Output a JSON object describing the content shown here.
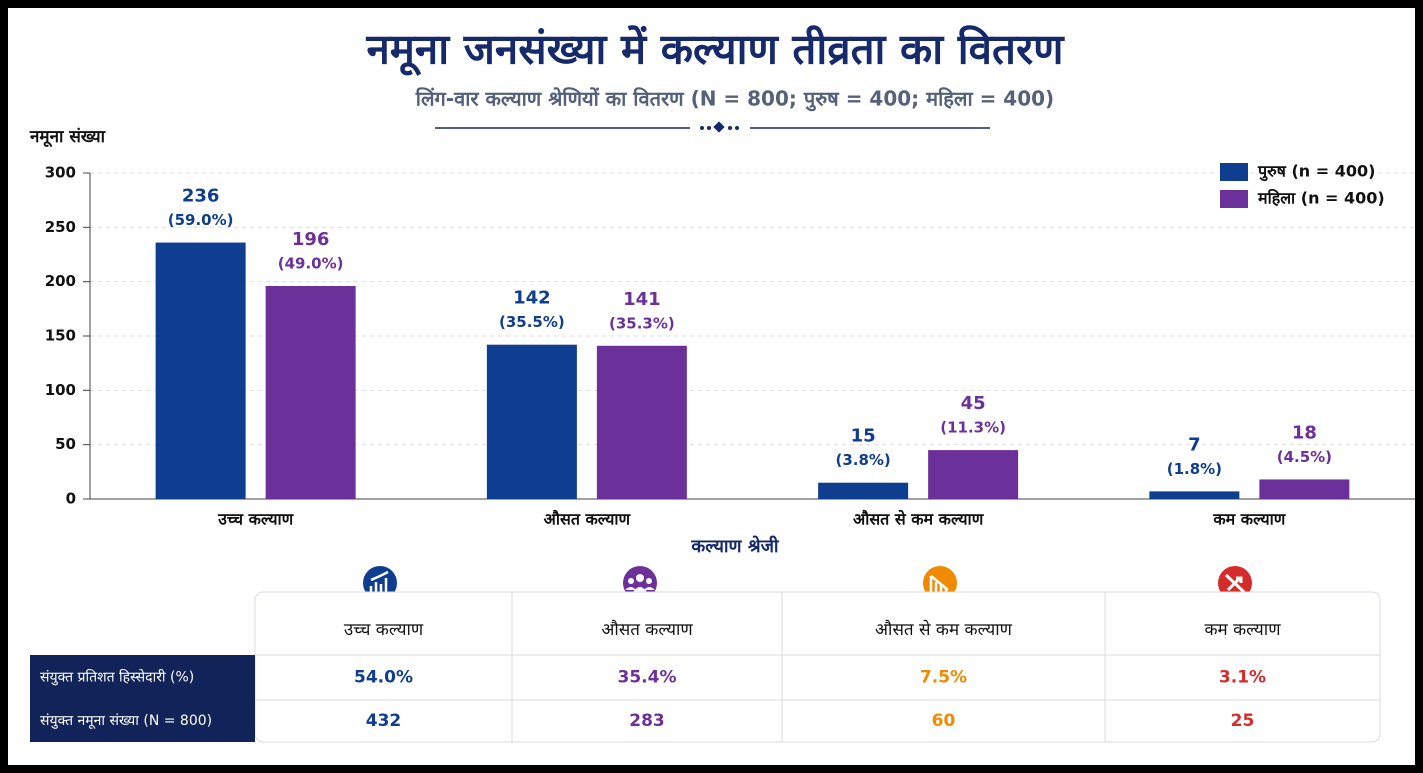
{
  "chart_data": {
    "type": "bar",
    "title": "नमूना जनसंख्या में कल्याण तीव्रता का वितरण",
    "subtitle": "लिंग-वार कल्याण श्रेणियों का वितरण (N = 800; पुरुष = 400; महिला = 400)",
    "y_label": "नमूना संख्या",
    "x_label": "कल्याण श्रेजी",
    "categories": [
      "उच्च कल्याण",
      "औसत कल्याण",
      "औसत से कम कल्याण",
      "कम कल्याण"
    ],
    "series": [
      {
        "name": "पुरुष (n = 400)",
        "color": "#0f3d8f",
        "values": [
          236,
          142,
          15,
          7
        ],
        "percent_labels": [
          "(59.0%)",
          "(35.5%)",
          "(3.8%)",
          "(1.8%)"
        ]
      },
      {
        "name": "महिला (n = 400)",
        "color": "#6b3099",
        "values": [
          196,
          141,
          45,
          18
        ],
        "percent_labels": [
          "(49.0%)",
          "(35.3%)",
          "(11.3%)",
          "(4.5%)"
        ]
      }
    ],
    "ylim": [
      0,
      300
    ],
    "yticks": [
      0,
      50,
      100,
      150,
      200,
      250,
      300
    ],
    "grid": true,
    "legend": "top-right"
  },
  "table": {
    "columns": [
      "उच्च कल्याण",
      "औसत कल्याण",
      "औसत से कम कल्याण",
      "कम कल्याण"
    ],
    "column_colors": [
      "#0f3d8f",
      "#6b3099",
      "#f08a00",
      "#d62b2b"
    ],
    "rows": [
      {
        "label": "संयुक्त प्रतिशत हिस्सेदारी (%)",
        "cells": [
          "54.0%",
          "35.4%",
          "7.5%",
          "3.1%"
        ]
      },
      {
        "label": "संयुक्त नमूना संख्या (N = 800)",
        "cells": [
          432,
          283,
          60,
          25
        ]
      }
    ]
  }
}
